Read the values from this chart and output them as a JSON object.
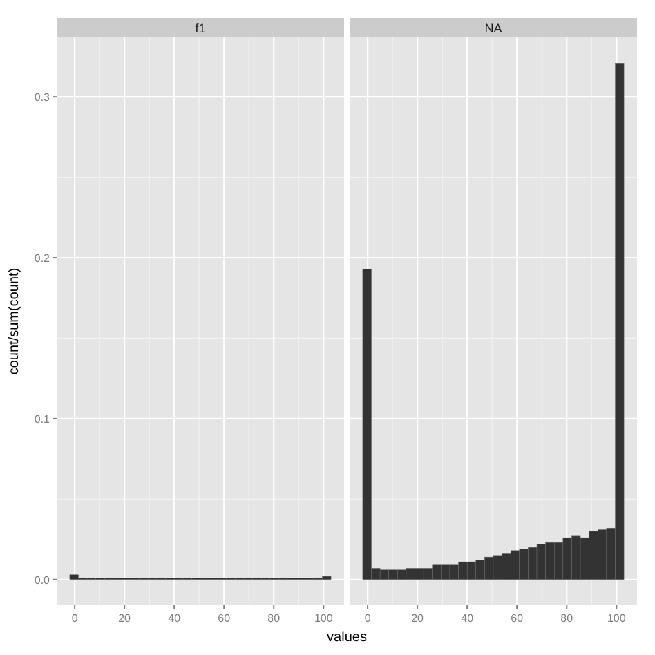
{
  "chart_data": [
    {
      "type": "histogram",
      "title": "f1",
      "xlabel": "values",
      "ylabel": "count/sum(count)",
      "color": "#333333",
      "grid": true,
      "bins": [
        -2,
        1.5,
        5,
        8.5,
        12,
        15.5,
        19,
        22.5,
        26,
        29.5,
        33,
        36.5,
        40,
        43.5,
        47,
        50.5,
        54,
        57.5,
        61,
        64.5,
        68,
        71.5,
        75,
        78.5,
        82,
        85.5,
        89,
        92.5,
        96,
        99.5,
        103
      ],
      "values": [
        0.003,
        0.001,
        0.001,
        0.001,
        0.001,
        0.001,
        0.001,
        0.001,
        0.001,
        0.001,
        0.001,
        0.001,
        0.001,
        0.001,
        0.001,
        0.001,
        0.001,
        0.001,
        0.001,
        0.001,
        0.001,
        0.001,
        0.001,
        0.001,
        0.001,
        0.001,
        0.001,
        0.001,
        0.001,
        0.002
      ],
      "xlim": [
        -7.25,
        108.25
      ],
      "xticks": [
        0,
        20,
        40,
        60,
        80,
        100
      ],
      "ylim": [
        -0.016,
        0.337
      ],
      "yticks": [
        {
          "value": 0,
          "label": "0.0"
        },
        {
          "value": 0.1,
          "label": "0.1"
        },
        {
          "value": 0.2,
          "label": "0.2"
        },
        {
          "value": 0.3,
          "label": "0.3"
        }
      ]
    },
    {
      "type": "histogram",
      "title": "NA",
      "color": "#333333",
      "grid": true,
      "tick_labels": "x",
      "bins": [
        -2,
        1.5,
        5,
        8.5,
        12,
        15.5,
        19,
        22.5,
        26,
        29.5,
        33,
        36.5,
        40,
        43.5,
        47,
        50.5,
        54,
        57.5,
        61,
        64.5,
        68,
        71.5,
        75,
        78.5,
        82,
        85.5,
        89,
        92.5,
        96,
        99.5,
        103
      ],
      "values": [
        0.193,
        0.007,
        0.006,
        0.006,
        0.006,
        0.007,
        0.007,
        0.007,
        0.009,
        0.009,
        0.009,
        0.011,
        0.011,
        0.012,
        0.014,
        0.015,
        0.016,
        0.018,
        0.019,
        0.02,
        0.022,
        0.023,
        0.023,
        0.026,
        0.027,
        0.026,
        0.03,
        0.031,
        0.032,
        0.321
      ],
      "xlim": [
        -7.25,
        108.25
      ],
      "xticks": [
        0,
        20,
        40,
        60,
        80,
        100
      ],
      "ylim": [
        -0.016,
        0.337
      ],
      "yticks": [
        0,
        0.1,
        0.2,
        0.3
      ]
    }
  ]
}
